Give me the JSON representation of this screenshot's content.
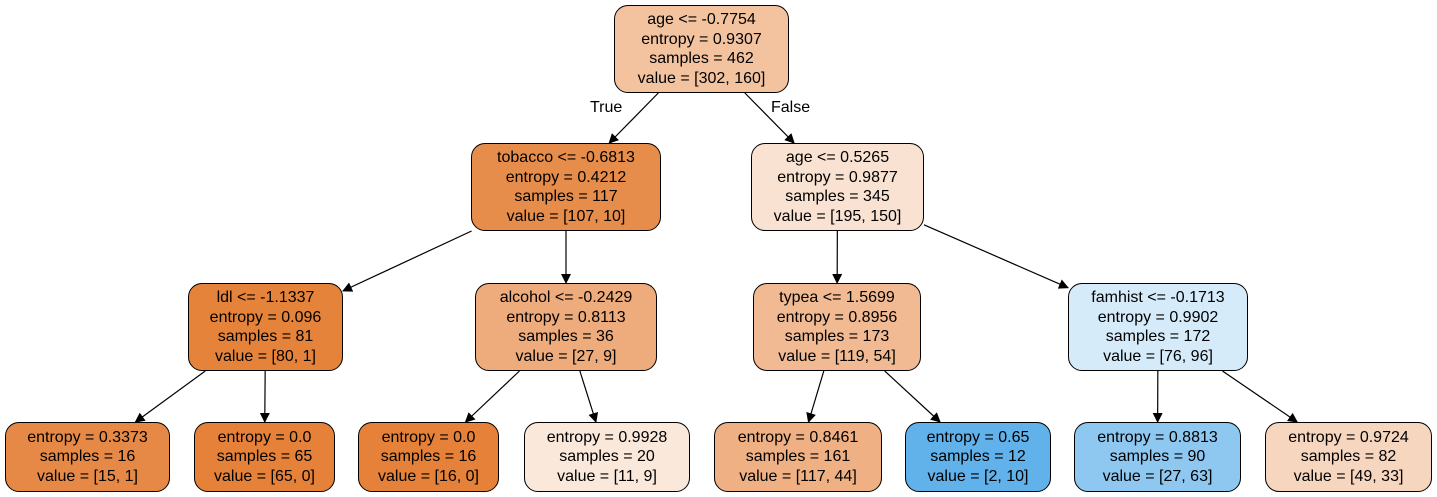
{
  "edge_labels": {
    "true_label": "True",
    "false_label": "False"
  },
  "nodes": [
    {
      "id": "n0",
      "split": "age <= -0.7754",
      "entropy": "entropy = 0.9307",
      "samples": "samples = 462",
      "value": "value = [302, 160]",
      "fill": "#f3c3a0"
    },
    {
      "id": "n1",
      "split": "tobacco <= -0.6813",
      "entropy": "entropy = 0.4212",
      "samples": "samples = 117",
      "value": "value = [107, 10]",
      "fill": "#e78d4b"
    },
    {
      "id": "n2",
      "split": "age <= 0.5265",
      "entropy": "entropy = 0.9877",
      "samples": "samples = 345",
      "value": "value = [195, 150]",
      "fill": "#f9e2d1"
    },
    {
      "id": "n3",
      "split": "ldl <= -1.1337",
      "entropy": "entropy = 0.096",
      "samples": "samples = 81",
      "value": "value = [80, 1]",
      "fill": "#e5833b"
    },
    {
      "id": "n4",
      "split": "alcohol <= -0.2429",
      "entropy": "entropy = 0.8113",
      "samples": "samples = 36",
      "value": "value = [27, 9]",
      "fill": "#eeab7b"
    },
    {
      "id": "n5",
      "split": "typea <= 1.5699",
      "entropy": "entropy = 0.8956",
      "samples": "samples = 173",
      "value": "value = [119, 54]",
      "fill": "#f1ba93"
    },
    {
      "id": "n6",
      "split": "famhist <= -0.1713",
      "entropy": "entropy = 0.9902",
      "samples": "samples = 172",
      "value": "value = [76, 96]",
      "fill": "#d6ebfa"
    },
    {
      "id": "n7",
      "split": "",
      "entropy": "entropy = 0.3373",
      "samples": "samples = 16",
      "value": "value = [15, 1]",
      "fill": "#e78946"
    },
    {
      "id": "n8",
      "split": "",
      "entropy": "entropy = 0.0",
      "samples": "samples = 65",
      "value": "value = [65, 0]",
      "fill": "#e58139"
    },
    {
      "id": "n9",
      "split": "",
      "entropy": "entropy = 0.0",
      "samples": "samples = 16",
      "value": "value = [16, 0]",
      "fill": "#e58139"
    },
    {
      "id": "n10",
      "split": "",
      "entropy": "entropy = 0.9928",
      "samples": "samples = 20",
      "value": "value = [11, 9]",
      "fill": "#fae8da"
    },
    {
      "id": "n11",
      "split": "",
      "entropy": "entropy = 0.8461",
      "samples": "samples = 161",
      "value": "value = [117, 44]",
      "fill": "#efb083"
    },
    {
      "id": "n12",
      "split": "",
      "entropy": "entropy = 0.65",
      "samples": "samples = 12",
      "value": "value = [2, 10]",
      "fill": "#61b1ea"
    },
    {
      "id": "n13",
      "split": "",
      "entropy": "entropy = 0.8813",
      "samples": "samples = 90",
      "value": "value = [27, 63]",
      "fill": "#8ec7f0"
    },
    {
      "id": "n14",
      "split": "",
      "entropy": "entropy = 0.9724",
      "samples": "samples = 82",
      "value": "value = [49, 33]",
      "fill": "#f6d6be"
    }
  ],
  "edges": [
    [
      "n0",
      "n1"
    ],
    [
      "n0",
      "n2"
    ],
    [
      "n1",
      "n3"
    ],
    [
      "n1",
      "n4"
    ],
    [
      "n2",
      "n5"
    ],
    [
      "n2",
      "n6"
    ],
    [
      "n3",
      "n7"
    ],
    [
      "n3",
      "n8"
    ],
    [
      "n4",
      "n9"
    ],
    [
      "n4",
      "n10"
    ],
    [
      "n5",
      "n11"
    ],
    [
      "n5",
      "n12"
    ],
    [
      "n6",
      "n13"
    ],
    [
      "n6",
      "n14"
    ]
  ]
}
